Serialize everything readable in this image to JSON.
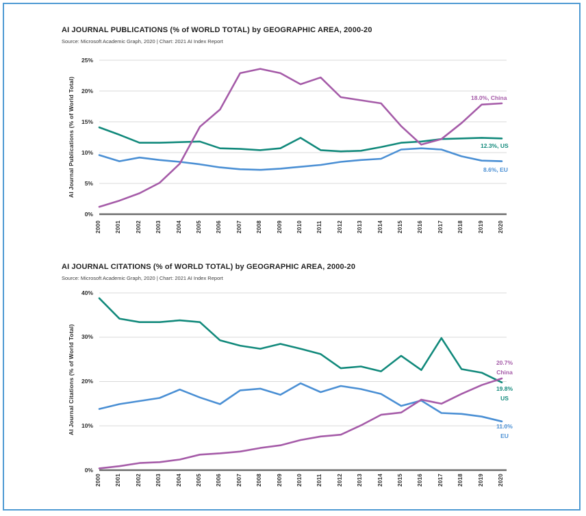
{
  "page": {
    "border_color": "#4e9ad3",
    "background": "#ffffff"
  },
  "chart_data": [
    {
      "type": "line",
      "title": "AI JOURNAL PUBLICATIONS (% of WORLD TOTAL) by GEOGRAPHIC AREA, 2000-20",
      "source": "Source: Microsoft Academic Graph, 2020 | Chart: 2021 AI Index Report",
      "ylabel": "AI Journal Publications (% of World Total)",
      "xlabel": "",
      "ylim": [
        0,
        25
      ],
      "ytick_labels": [
        "0%",
        "5%",
        "10%",
        "15%",
        "20%",
        "25%"
      ],
      "grid": true,
      "legend_position": "end-of-line-labels",
      "x": [
        "2000",
        "2001",
        "2002",
        "2003",
        "2004",
        "2005",
        "2006",
        "2007",
        "2008",
        "2009",
        "2010",
        "2011",
        "2012",
        "2013",
        "2014",
        "2015",
        "2016",
        "2017",
        "2018",
        "2019",
        "2020"
      ],
      "series": [
        {
          "name": "US",
          "color": "#11897B",
          "end_label_lines": [
            "12.3%, US"
          ],
          "values": [
            14.1,
            12.9,
            11.6,
            11.6,
            11.7,
            11.8,
            10.7,
            10.6,
            10.4,
            10.7,
            12.4,
            10.4,
            10.2,
            10.3,
            10.9,
            11.6,
            11.8,
            12.2,
            12.3,
            12.4,
            12.3
          ]
        },
        {
          "name": "EU",
          "color": "#4A8FD4",
          "end_label_lines": [
            "8.6%, EU"
          ],
          "values": [
            9.6,
            8.6,
            9.2,
            8.8,
            8.5,
            8.1,
            7.6,
            7.3,
            7.2,
            7.4,
            7.7,
            8.0,
            8.5,
            8.8,
            9.0,
            10.5,
            10.7,
            10.5,
            9.4,
            8.7,
            8.6
          ]
        },
        {
          "name": "China",
          "color": "#A55BA8",
          "end_label_lines": [
            "18.0%, China"
          ],
          "values": [
            1.2,
            2.2,
            3.4,
            5.1,
            8.2,
            14.2,
            17.0,
            22.9,
            23.6,
            22.9,
            21.1,
            22.2,
            19.0,
            18.5,
            18.0,
            14.3,
            11.3,
            12.2,
            14.8,
            17.8,
            18.0
          ]
        }
      ]
    },
    {
      "type": "line",
      "title": "AI JOURNAL CITATIONS (% of WORLD TOTAL) by GEOGRAPHIC AREA, 2000-20",
      "source": "Source: Microsoft Academic Graph, 2020 | Chart: 2021 AI Index Report",
      "ylabel": "AI Journal Citations (% of World Total)",
      "xlabel": "",
      "ylim": [
        0,
        40
      ],
      "ytick_labels": [
        "0%",
        "10%",
        "20%",
        "30%",
        "40%"
      ],
      "grid": true,
      "legend_position": "end-of-line-labels",
      "x": [
        "2000",
        "2001",
        "2002",
        "2003",
        "2004",
        "2005",
        "2006",
        "2007",
        "2008",
        "2009",
        "2010",
        "2011",
        "2012",
        "2013",
        "2014",
        "2015",
        "2016",
        "2017",
        "2018",
        "2019",
        "2020"
      ],
      "series": [
        {
          "name": "US",
          "color": "#11897B",
          "end_label_lines": [
            "19.8%",
            "US"
          ],
          "values": [
            38.8,
            34.2,
            33.4,
            33.4,
            33.8,
            33.4,
            29.3,
            28.1,
            27.4,
            28.5,
            27.4,
            26.2,
            23.0,
            23.4,
            22.3,
            25.8,
            22.6,
            29.8,
            22.8,
            22.0,
            19.8
          ]
        },
        {
          "name": "EU",
          "color": "#4A8FD4",
          "end_label_lines": [
            "11.0%",
            "EU"
          ],
          "values": [
            13.8,
            14.9,
            15.6,
            16.3,
            18.2,
            16.4,
            14.9,
            18.0,
            18.4,
            17.0,
            19.6,
            17.6,
            19.0,
            18.3,
            17.2,
            14.5,
            15.7,
            12.9,
            12.7,
            12.1,
            11.0
          ]
        },
        {
          "name": "China",
          "color": "#A55BA8",
          "end_label_lines": [
            "20.7%",
            "China"
          ],
          "values": [
            0.4,
            0.9,
            1.6,
            1.8,
            2.4,
            3.5,
            3.8,
            4.2,
            5.0,
            5.6,
            6.8,
            7.6,
            8.0,
            10.1,
            12.5,
            13.0,
            15.9,
            15.0,
            17.2,
            19.2,
            20.7
          ]
        }
      ]
    }
  ]
}
